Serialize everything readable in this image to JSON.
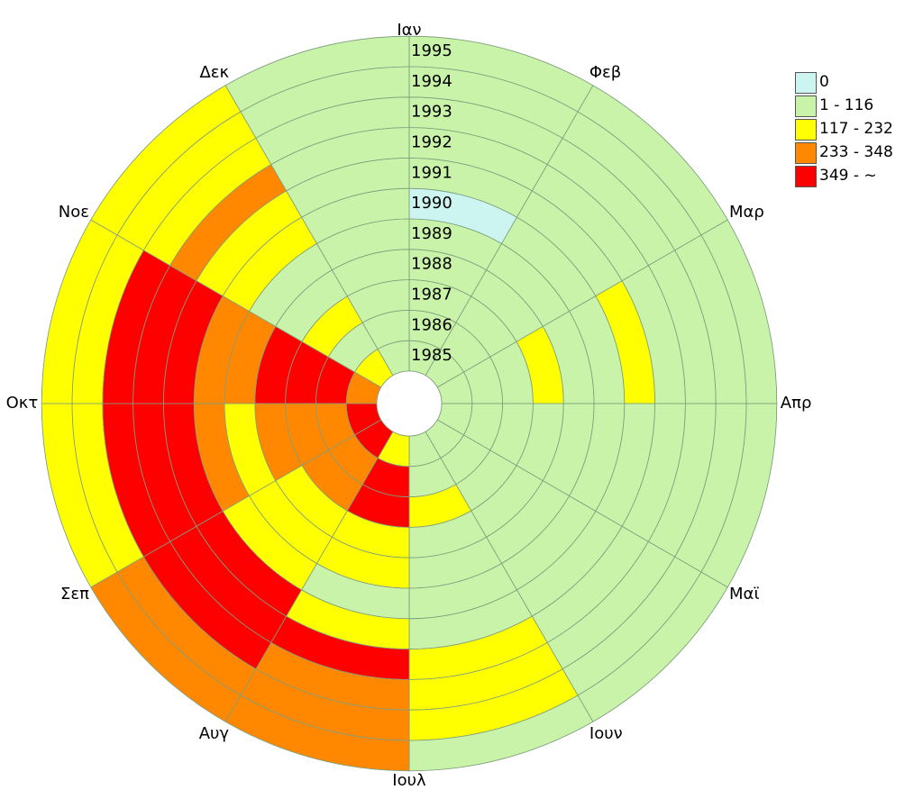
{
  "chart_data": {
    "type": "heatmap",
    "layout": "polar",
    "months": [
      "Ιαν",
      "Φεβ",
      "Μαρ",
      "Απρ",
      "Μαϊ",
      "Ιουν",
      "Ιουλ",
      "Αυγ",
      "Σεπ",
      "Οκτ",
      "Νοε",
      "Δεκ"
    ],
    "years": [
      1985,
      1986,
      1987,
      1988,
      1989,
      1990,
      1991,
      1992,
      1993,
      1994,
      1995
    ],
    "year_labels": [
      "1985",
      "1986",
      "1987",
      "1988",
      "1989",
      "1990",
      "1991",
      "1992",
      "1993",
      "1994",
      "1995"
    ],
    "legend": [
      {
        "label": "0",
        "color": "#ccf5f2"
      },
      {
        "label": "1 - 116",
        "color": "#c8f3a8"
      },
      {
        "label": "117 - 232",
        "color": "#ffff00"
      },
      {
        "label": "233 - 348",
        "color": "#ff8800"
      },
      {
        "label": "349 - ~",
        "color": "#ff0000"
      }
    ],
    "class_matrix_note": "rows = years 1985..1995, columns = months Ιαν..Δεκ, value = legend class index",
    "class_matrix": [
      [
        1,
        1,
        1,
        1,
        1,
        1,
        2,
        4,
        4,
        3,
        2,
        1
      ],
      [
        1,
        1,
        1,
        1,
        1,
        1,
        4,
        3,
        3,
        4,
        1,
        1
      ],
      [
        1,
        1,
        1,
        1,
        1,
        2,
        4,
        3,
        3,
        4,
        2,
        1
      ],
      [
        1,
        1,
        2,
        1,
        1,
        1,
        2,
        2,
        3,
        4,
        1,
        1
      ],
      [
        1,
        1,
        1,
        1,
        1,
        1,
        2,
        2,
        2,
        3,
        1,
        1
      ],
      [
        0,
        1,
        1,
        1,
        1,
        1,
        1,
        2,
        3,
        3,
        2,
        1
      ],
      [
        1,
        1,
        2,
        1,
        1,
        1,
        2,
        4,
        4,
        4,
        2,
        1
      ],
      [
        1,
        1,
        1,
        1,
        1,
        2,
        4,
        4,
        4,
        4,
        3,
        1
      ],
      [
        1,
        1,
        1,
        1,
        1,
        2,
        3,
        4,
        4,
        4,
        2,
        1
      ],
      [
        1,
        1,
        1,
        1,
        1,
        2,
        3,
        3,
        2,
        2,
        2,
        1
      ],
      [
        1,
        1,
        1,
        1,
        1,
        1,
        3,
        3,
        2,
        2,
        2,
        1
      ]
    ],
    "colors": {
      "grid": "#7f9f7f",
      "border": "#7f9f7f",
      "center": "#ffffff"
    }
  }
}
